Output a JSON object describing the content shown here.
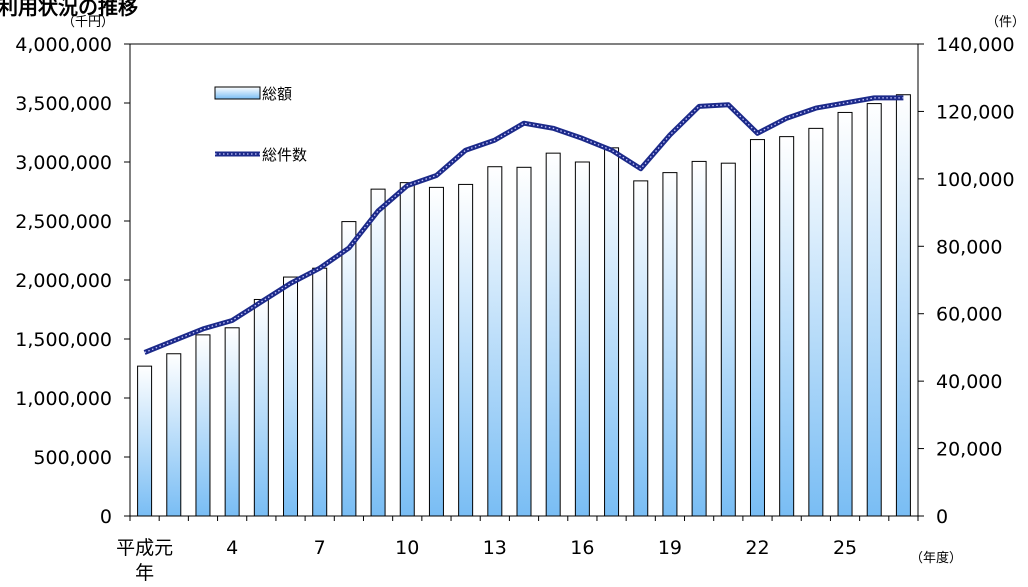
{
  "chart_data": {
    "type": "bar+line",
    "title": "利用状況の推移",
    "left_unit": "（千円）",
    "right_unit": "（件）",
    "x_unit": "（年度）",
    "x_tick_labels": [
      "平成元\n年",
      "4",
      "7",
      "10",
      "13",
      "16",
      "19",
      "22",
      "25"
    ],
    "categories": [
      "平成元年",
      "2",
      "3",
      "4",
      "5",
      "6",
      "7",
      "8",
      "9",
      "10",
      "11",
      "12",
      "13",
      "14",
      "15",
      "16",
      "17",
      "18",
      "19",
      "20",
      "21",
      "22",
      "23",
      "24",
      "25",
      "26",
      "27"
    ],
    "left_axis": {
      "min": 0,
      "max": 4000000,
      "step": 500000,
      "tick_labels": [
        "0",
        "500,000",
        "1,000,000",
        "1,500,000",
        "2,000,000",
        "2,500,000",
        "3,000,000",
        "3,500,000",
        "4,000,000"
      ]
    },
    "right_axis": {
      "min": 0,
      "max": 140000,
      "step": 20000,
      "tick_labels": [
        "0",
        "20,000",
        "40,000",
        "60,000",
        "80,000",
        "100,000",
        "120,000",
        "140,000"
      ]
    },
    "legend_placement": "top-left inside plot",
    "series": [
      {
        "name": "総額",
        "type": "bar",
        "axis": "left",
        "values": [
          1270000,
          1375000,
          1535000,
          1595000,
          1835000,
          2025000,
          2100000,
          2495000,
          2770000,
          2825000,
          2785000,
          2810000,
          2960000,
          2955000,
          3075000,
          3000000,
          3120000,
          2840000,
          2910000,
          3005000,
          2990000,
          3190000,
          3215000,
          3285000,
          3420000,
          3495000,
          3570000
        ]
      },
      {
        "name": "総件数",
        "type": "line",
        "axis": "right",
        "values": [
          48500,
          52000,
          55500,
          58000,
          63500,
          69000,
          73500,
          79500,
          90500,
          98000,
          101000,
          108500,
          111500,
          116500,
          115000,
          112000,
          108500,
          103000,
          113000,
          121500,
          122000,
          113500,
          118000,
          121000,
          122500,
          124000,
          124000
        ]
      }
    ],
    "colors": {
      "bar_top": "#ffffff",
      "bar_bottom": "#79bdf4",
      "bar_edge": "#000000",
      "line": "#1c2a8a",
      "line_dots": "#c8c8ff"
    }
  }
}
